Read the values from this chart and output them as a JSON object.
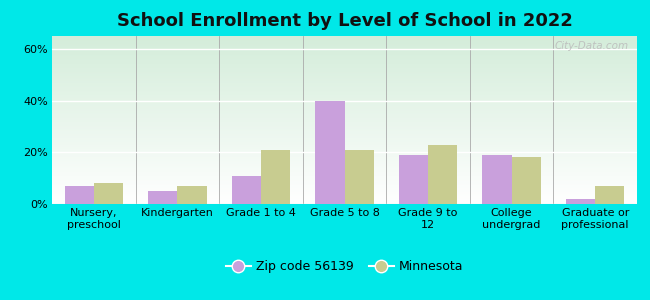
{
  "title": "School Enrollment by Level of School in 2022",
  "categories": [
    "Nursery,\npreschool",
    "Kindergarten",
    "Grade 1 to 4",
    "Grade 5 to 8",
    "Grade 9 to\n12",
    "College\nundergrad",
    "Graduate or\nprofessional"
  ],
  "zip_values": [
    7,
    5,
    11,
    40,
    19,
    19,
    2
  ],
  "mn_values": [
    8,
    7,
    21,
    21,
    23,
    18,
    7
  ],
  "zip_color": "#c9a0dc",
  "mn_color": "#c8cc90",
  "background_outer": "#00e8e8",
  "ylim": [
    0,
    65
  ],
  "yticks": [
    0,
    20,
    40,
    60
  ],
  "ytick_labels": [
    "0%",
    "20%",
    "40%",
    "60%"
  ],
  "legend_zip_label": "Zip code 56139",
  "legend_mn_label": "Minnesota",
  "bar_width": 0.35,
  "watermark": "City-Data.com",
  "title_fontsize": 13,
  "tick_fontsize": 8,
  "legend_fontsize": 9
}
